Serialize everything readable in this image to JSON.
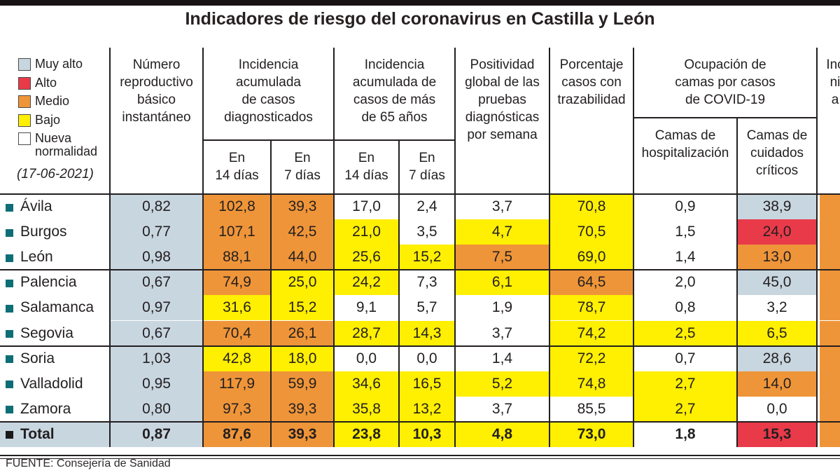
{
  "title": "Indicadores de riesgo del coronavirus en Castilla y León",
  "source": "FUENTE: Consejería de Sanidad",
  "legend": {
    "date": "(17-06-2021)",
    "items": [
      {
        "label": "Muy alto",
        "level": "muy_alto"
      },
      {
        "label": "Alto",
        "level": "alto"
      },
      {
        "label": "Medio",
        "level": "medio"
      },
      {
        "label": "Bajo",
        "level": "bajo"
      },
      {
        "label": "Nueva normalidad",
        "level": "nueva"
      }
    ]
  },
  "colors": {
    "muy_alto": "#c8d6e0",
    "alto": "#e93a4a",
    "medio": "#ef9539",
    "bajo": "#ffef00",
    "nueva": "#ffffff",
    "bullet_province": "#0d6e75",
    "bullet_total": "#1a1a1a",
    "line": "#231f20"
  },
  "header": {
    "basic": "Número\nreproductivo\nbásico\ninstantáneo",
    "ia_diag": "Incidencia\nacumulada\nde casos\ndiagnosticados",
    "ia_65": "Incidencia\nacumulada de\ncasos de más\nde 65 años",
    "en14": "En\n14 días",
    "en7": "En\n7 días",
    "positividad": "Positividad\nglobal de las\npruebas\ndiagnósticas\npor semana",
    "trazabilidad": "Porcentaje\ncasos con\ntrazabilidad",
    "ocupacion": "Ocupación de\ncamas por casos\nde COVID-19",
    "hospitalizacion": "Camas de\nhospitalización",
    "criticos": "Camas de\ncuidados\ncríticos",
    "cut_fragment": "Inc\nni\na"
  },
  "table": {
    "column_keys": [
      "num_reproductivo",
      "ia14_diag",
      "ia7_diag",
      "ia14_65",
      "ia7_65",
      "positividad",
      "trazabilidad",
      "camas_hosp",
      "camas_criticos"
    ],
    "rows": [
      {
        "name": "Ávila",
        "total": false,
        "label_level": "nueva",
        "values": [
          "0,82",
          "102,8",
          "39,3",
          "17,0",
          "2,4",
          "3,7",
          "70,8",
          "0,9",
          "38,9"
        ],
        "levels": [
          "muy_alto",
          "medio",
          "medio",
          "nueva",
          "nueva",
          "nueva",
          "bajo",
          "nueva",
          "muy_alto"
        ],
        "cut_level": "medio"
      },
      {
        "name": "Burgos",
        "total": false,
        "label_level": "nueva",
        "values": [
          "0,77",
          "107,1",
          "42,5",
          "21,0",
          "3,5",
          "4,7",
          "70,5",
          "1,5",
          "24,0"
        ],
        "levels": [
          "muy_alto",
          "medio",
          "medio",
          "bajo",
          "nueva",
          "bajo",
          "bajo",
          "nueva",
          "alto"
        ],
        "cut_level": "medio"
      },
      {
        "name": "León",
        "total": false,
        "label_level": "nueva",
        "values": [
          "0,98",
          "88,1",
          "44,0",
          "25,6",
          "15,2",
          "7,5",
          "69,0",
          "1,4",
          "13,0"
        ],
        "levels": [
          "muy_alto",
          "medio",
          "medio",
          "bajo",
          "bajo",
          "medio",
          "bajo",
          "nueva",
          "medio"
        ],
        "cut_level": "medio"
      },
      {
        "name": "Palencia",
        "total": false,
        "label_level": "nueva",
        "values": [
          "0,67",
          "74,9",
          "25,0",
          "24,2",
          "7,3",
          "6,1",
          "64,5",
          "2,0",
          "45,0"
        ],
        "levels": [
          "muy_alto",
          "medio",
          "bajo",
          "bajo",
          "nueva",
          "bajo",
          "medio",
          "nueva",
          "muy_alto"
        ],
        "cut_level": "medio"
      },
      {
        "name": "Salamanca",
        "total": false,
        "label_level": "nueva",
        "values": [
          "0,97",
          "31,6",
          "15,2",
          "9,1",
          "5,7",
          "1,9",
          "78,7",
          "0,8",
          "3,2"
        ],
        "levels": [
          "muy_alto",
          "bajo",
          "bajo",
          "nueva",
          "nueva",
          "nueva",
          "bajo",
          "nueva",
          "nueva"
        ],
        "cut_level": "medio"
      },
      {
        "name": "Segovia",
        "total": false,
        "label_level": "nueva",
        "values": [
          "0,67",
          "70,4",
          "26,1",
          "28,7",
          "14,3",
          "3,7",
          "74,2",
          "2,5",
          "6,5"
        ],
        "levels": [
          "muy_alto",
          "medio",
          "medio",
          "bajo",
          "bajo",
          "nueva",
          "bajo",
          "bajo",
          "bajo"
        ],
        "cut_level": "medio"
      },
      {
        "name": "Soria",
        "total": false,
        "label_level": "nueva",
        "values": [
          "1,03",
          "42,8",
          "18,0",
          "0,0",
          "0,0",
          "1,4",
          "72,2",
          "0,7",
          "28,6"
        ],
        "levels": [
          "muy_alto",
          "bajo",
          "bajo",
          "nueva",
          "nueva",
          "nueva",
          "bajo",
          "nueva",
          "muy_alto"
        ],
        "cut_level": "medio"
      },
      {
        "name": "Valladolid",
        "total": false,
        "label_level": "nueva",
        "values": [
          "0,95",
          "117,9",
          "59,9",
          "34,6",
          "16,5",
          "5,2",
          "74,8",
          "2,7",
          "14,0"
        ],
        "levels": [
          "muy_alto",
          "medio",
          "medio",
          "bajo",
          "bajo",
          "bajo",
          "bajo",
          "bajo",
          "medio"
        ],
        "cut_level": "medio"
      },
      {
        "name": "Zamora",
        "total": false,
        "label_level": "nueva",
        "values": [
          "0,80",
          "97,3",
          "39,3",
          "35,8",
          "13,2",
          "3,7",
          "85,5",
          "2,7",
          "0,0"
        ],
        "levels": [
          "muy_alto",
          "medio",
          "medio",
          "bajo",
          "bajo",
          "nueva",
          "nueva",
          "bajo",
          "nueva"
        ],
        "cut_level": "medio"
      },
      {
        "name": "Total",
        "total": true,
        "label_level": "muy_alto",
        "values": [
          "0,87",
          "87,6",
          "39,3",
          "23,8",
          "10,3",
          "4,8",
          "73,0",
          "1,8",
          "15,3"
        ],
        "levels": [
          "muy_alto",
          "medio",
          "medio",
          "bajo",
          "bajo",
          "bajo",
          "bajo",
          "nueva",
          "alto"
        ],
        "cut_level": "medio"
      }
    ]
  }
}
